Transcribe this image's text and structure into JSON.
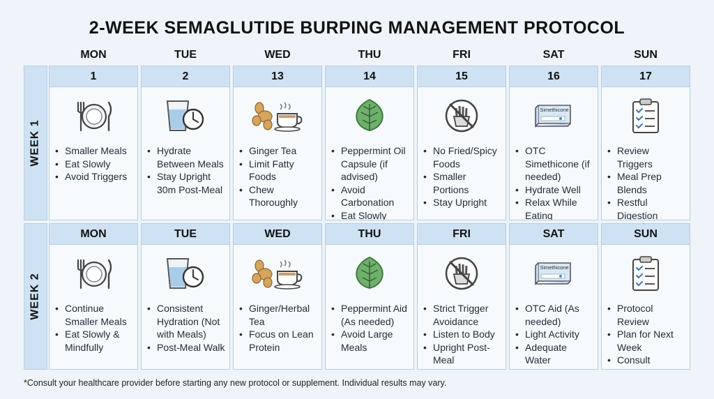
{
  "title": "2-WEEK SEMAGLUTIDE BURPING MANAGEMENT PROTOCOL",
  "day_headers": [
    "MON",
    "TUE",
    "WED",
    "THU",
    "FRI",
    "SAT",
    "SUN"
  ],
  "weeks": [
    {
      "label": "WEEK 1",
      "cells": [
        {
          "head": "1",
          "icon": "plate-fork-knife-icon",
          "items": [
            "Smaller Meals",
            "Eat Slowly",
            "Avoid Triggers"
          ]
        },
        {
          "head": "2",
          "icon": "water-glass-clock-icon",
          "items": [
            "Hydrate Between Meals",
            "Stay Upright 30m Post-Meal"
          ]
        },
        {
          "head": "13",
          "icon": "ginger-tea-icon",
          "items": [
            "Ginger Tea",
            "Limit Fatty Foods",
            "Chew Thoroughly"
          ]
        },
        {
          "head": "14",
          "icon": "peppermint-leaf-icon",
          "items": [
            "Peppermint Oil Capsule (if advised)",
            "Avoid Carbonation",
            "Eat Slowly"
          ]
        },
        {
          "head": "15",
          "icon": "no-fries-icon",
          "items": [
            "No Fried/Spicy Foods",
            "Smaller Portions",
            "Stay Upright"
          ]
        },
        {
          "head": "16",
          "icon": "simethicone-box-icon",
          "items": [
            "OTC Simethicone (if needed)",
            "Hydrate Well",
            "Relax While Eating"
          ]
        },
        {
          "head": "17",
          "icon": "clipboard-checklist-icon",
          "items": [
            "Review Triggers",
            "Meal Prep Blends",
            "Restful Digestion"
          ]
        }
      ]
    },
    {
      "label": "WEEK 2",
      "cells": [
        {
          "head": "MON",
          "icon": "plate-fork-knife-icon",
          "items": [
            "Continue Smaller Meals",
            "Eat Slowly & Mindfully"
          ]
        },
        {
          "head": "TUE",
          "icon": "water-glass-clock-icon",
          "items": [
            "Consistent Hydration (Not with Meals)",
            "Post-Meal Walk"
          ]
        },
        {
          "head": "WED",
          "icon": "ginger-tea-icon",
          "items": [
            "Ginger/Herbal Tea",
            "Focus on Lean Protein"
          ]
        },
        {
          "head": "THU",
          "icon": "peppermint-leaf-icon",
          "items": [
            "Peppermint Aid (As needed)",
            "Avoid Large Meals"
          ]
        },
        {
          "head": "FRI",
          "icon": "no-fries-icon",
          "items": [
            "Strict Trigger Avoidance",
            "Listen to Body",
            "Upright Post-Meal"
          ]
        },
        {
          "head": "SAT",
          "icon": "simethicone-box-icon",
          "items": [
            "OTC Aid (As needed)",
            "Light Activity",
            "Adequate Water"
          ]
        },
        {
          "head": "SUN",
          "icon": "clipboard-checklist-icon",
          "items": [
            "Protocol Review",
            "Plan for Next Week",
            "Consult Provider if Persistent"
          ]
        }
      ]
    }
  ],
  "box_label": "Simethicone",
  "footnote": "*Consult your healthcare provider before starting any new protocol or supplement. Individual results may vary."
}
